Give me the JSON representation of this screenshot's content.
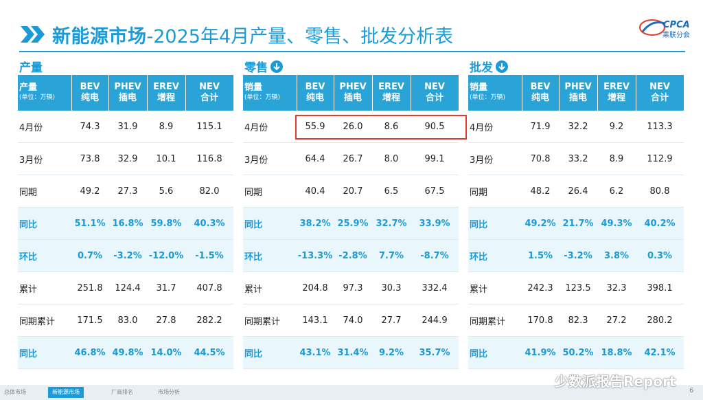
{
  "title": {
    "bold": "新能源市场",
    "rest": "-2025年4月产量、零售、批发分析表"
  },
  "logo": {
    "text": "CPCA",
    "subtext": "乘联分会"
  },
  "sections": {
    "production": {
      "label": "产量",
      "header_first": "产量",
      "unit": "(单位：万辆)"
    },
    "retail": {
      "label": "零售",
      "header_first": "销量",
      "unit": "(单位：万辆)"
    },
    "wholesale": {
      "label": "批发",
      "header_first": "销量",
      "unit": "(单位：万辆)"
    }
  },
  "columns": [
    {
      "en": "BEV",
      "zh": "纯电"
    },
    {
      "en": "PHEV",
      "zh": "插电"
    },
    {
      "en": "EREV",
      "zh": "增程"
    },
    {
      "en": "NEV",
      "zh": "合计"
    }
  ],
  "row_labels": [
    "4月份",
    "3月份",
    "同期",
    "同比",
    "环比",
    "累计",
    "同期累计",
    "同比"
  ],
  "production_rows": [
    [
      "74.3",
      "31.9",
      "8.9",
      "115.1"
    ],
    [
      "73.8",
      "32.9",
      "10.1",
      "116.8"
    ],
    [
      "49.2",
      "27.3",
      "5.6",
      "82.0"
    ],
    [
      "51.1%",
      "16.8%",
      "59.8%",
      "40.3%"
    ],
    [
      "0.7%",
      "-3.2%",
      "-12.0%",
      "-1.5%"
    ],
    [
      "251.8",
      "124.4",
      "31.7",
      "407.8"
    ],
    [
      "171.5",
      "83.0",
      "27.8",
      "282.2"
    ],
    [
      "46.8%",
      "49.8%",
      "14.0%",
      "44.5%"
    ]
  ],
  "retail_rows": [
    [
      "55.9",
      "26.0",
      "8.6",
      "90.5"
    ],
    [
      "64.4",
      "26.7",
      "8.0",
      "99.1"
    ],
    [
      "40.4",
      "20.7",
      "6.5",
      "67.5"
    ],
    [
      "38.2%",
      "25.9%",
      "32.7%",
      "33.9%"
    ],
    [
      "-13.3%",
      "-2.8%",
      "7.7%",
      "-8.7%"
    ],
    [
      "204.8",
      "97.3",
      "30.3",
      "332.4"
    ],
    [
      "143.1",
      "74.0",
      "27.7",
      "244.9"
    ],
    [
      "43.1%",
      "31.4%",
      "9.2%",
      "35.7%"
    ]
  ],
  "wholesale_rows": [
    [
      "71.9",
      "32.2",
      "9.2",
      "113.3"
    ],
    [
      "70.8",
      "33.2",
      "8.9",
      "112.9"
    ],
    [
      "48.2",
      "26.4",
      "6.2",
      "80.8"
    ],
    [
      "49.2%",
      "21.7%",
      "49.3%",
      "40.2%"
    ],
    [
      "1.5%",
      "-3.2%",
      "3.8%",
      "0.3%"
    ],
    [
      "242.3",
      "123.5",
      "32.3",
      "398.1"
    ],
    [
      "170.8",
      "82.3",
      "27.2",
      "280.2"
    ],
    [
      "41.9%",
      "50.2%",
      "18.8%",
      "42.1%"
    ]
  ],
  "footer": {
    "tabs": [
      "总体市场",
      "新能源市场",
      "厂商排名",
      "市场分析"
    ],
    "active_tab": 1,
    "watermark": "少数派报告Report",
    "page_number": "6"
  },
  "colors": {
    "accent": "#1a9ad6",
    "header_bg": "#2aa3d6",
    "pct_bg": "#e9f6fb",
    "highlight": "#e23b2e"
  }
}
